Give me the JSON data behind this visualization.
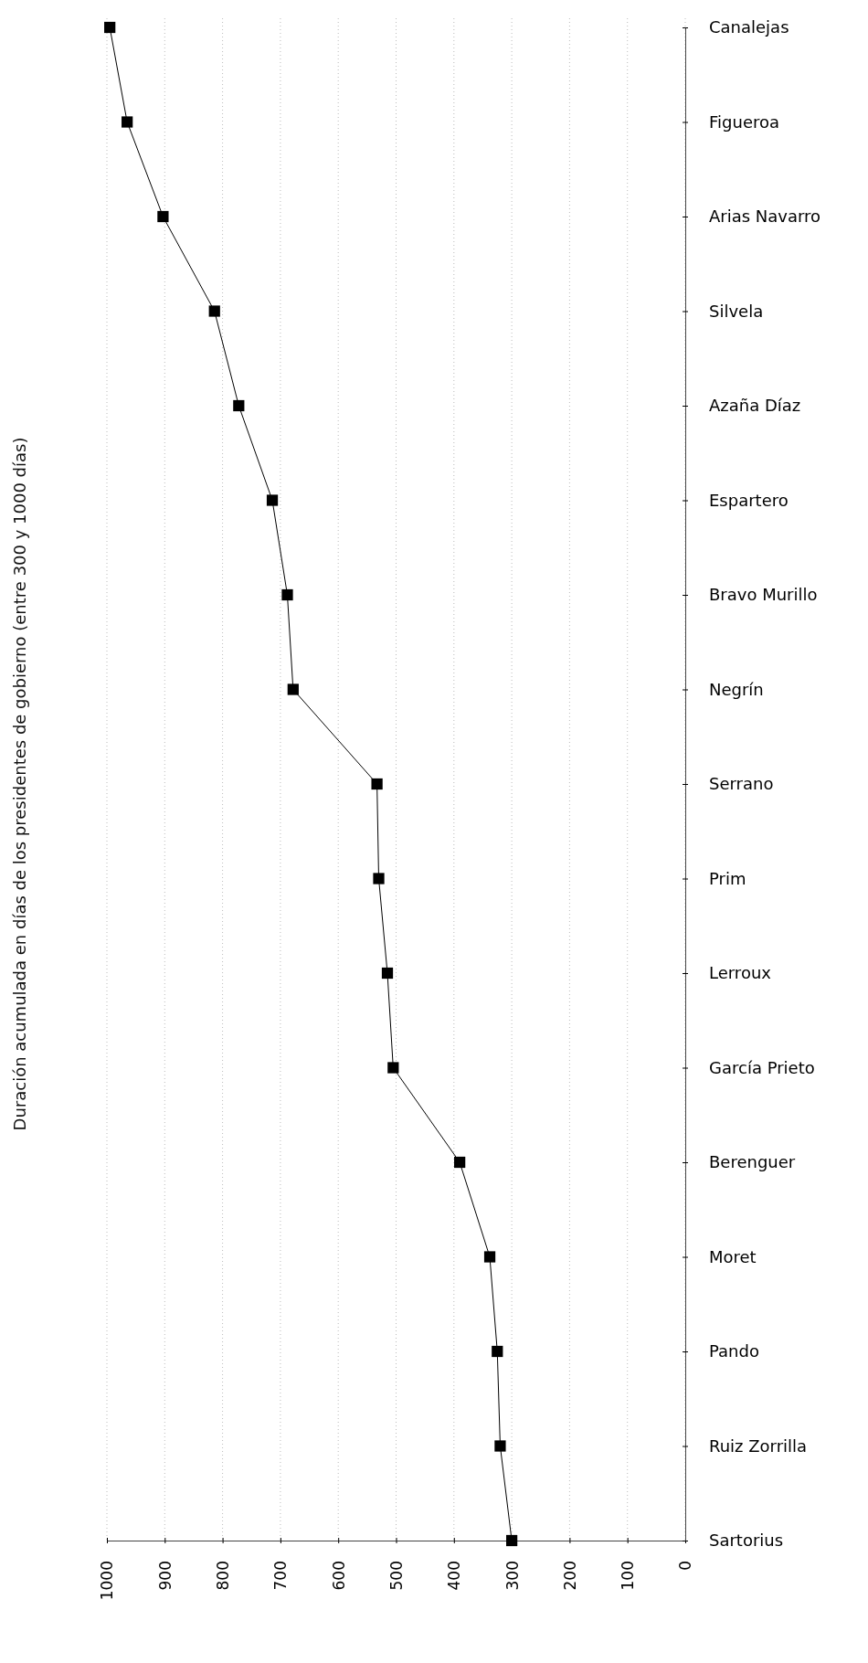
{
  "chart_data": {
    "type": "line",
    "orientation": "horizontal",
    "ylabel": "Duración acumulada en días de los presidentes de gobierno (entre 300 y 1000 días)",
    "categories": [
      "Canalejas",
      "Figueroa",
      "Arias Navarro",
      "Silvela",
      "Azaña Díaz",
      "Espartero",
      "Bravo Murillo",
      "Negrín",
      "Serrano",
      "Prim",
      "Lerroux",
      "García Prieto",
      "Berenguer",
      "Moret",
      "Pando",
      "Ruiz Zorrilla",
      "Sartorius"
    ],
    "series": [
      {
        "color": "#000000",
        "values": [
          995,
          965,
          903,
          814,
          772,
          714,
          688,
          678,
          533,
          530,
          515,
          505,
          390,
          338,
          325,
          320,
          300
        ]
      }
    ],
    "xlim": [
      1000,
      0
    ],
    "xticks": [
      1000,
      900,
      800,
      700,
      600,
      500,
      400,
      300,
      200,
      100,
      0
    ],
    "grid": "x",
    "marker": "square",
    "line_style": "solid"
  }
}
